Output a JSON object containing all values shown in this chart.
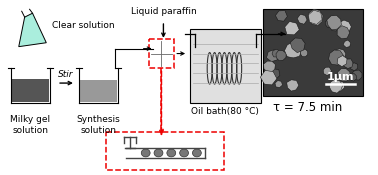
{
  "bg_color": "#ffffff",
  "text_color": "#000000",
  "red_color": "#ee0000",
  "flask_color": "#aaeedd",
  "beaker1_fill": "#555555",
  "beaker2_fill": "#999999",
  "arrow_color": "#000000",
  "label_clear": "Clear solution",
  "label_milky": "Milky gel\nsolution",
  "label_synth": "Synthesis\nsolution",
  "label_liquid": "Liquid paraffin",
  "label_oil": "Oil bath(80 °C)",
  "label_tau": "τ = 7.5 min",
  "label_stir": "Stir",
  "label_1um": "1μm",
  "font_size": 6.5,
  "font_size_tau": 8.5
}
